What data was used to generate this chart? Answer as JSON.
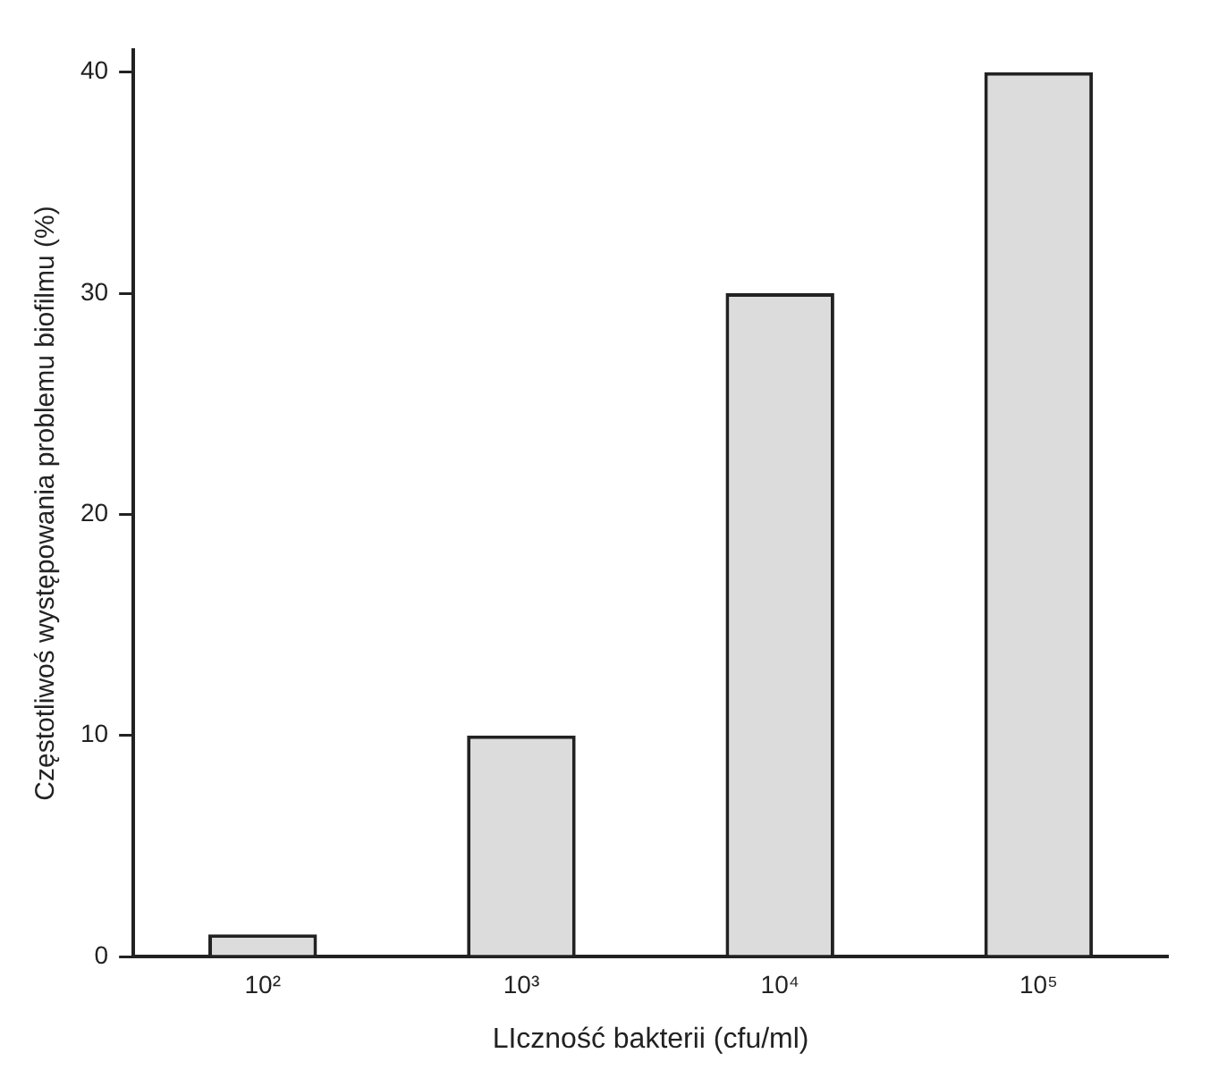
{
  "chart_data": {
    "type": "bar",
    "xlabel": "LIczność bakterii (cfu/ml)",
    "ylabel": "Częstotliwoś występowania problemu biofilmu (%)",
    "categories": [
      "10²",
      "10³",
      "10⁴",
      "10⁵"
    ],
    "values": [
      1,
      10,
      30,
      40
    ],
    "color": "#dcdcdc",
    "ylim": [
      0,
      41
    ],
    "yticks": [
      0,
      10,
      20,
      30,
      40
    ],
    "grid": false,
    "legend": false
  }
}
